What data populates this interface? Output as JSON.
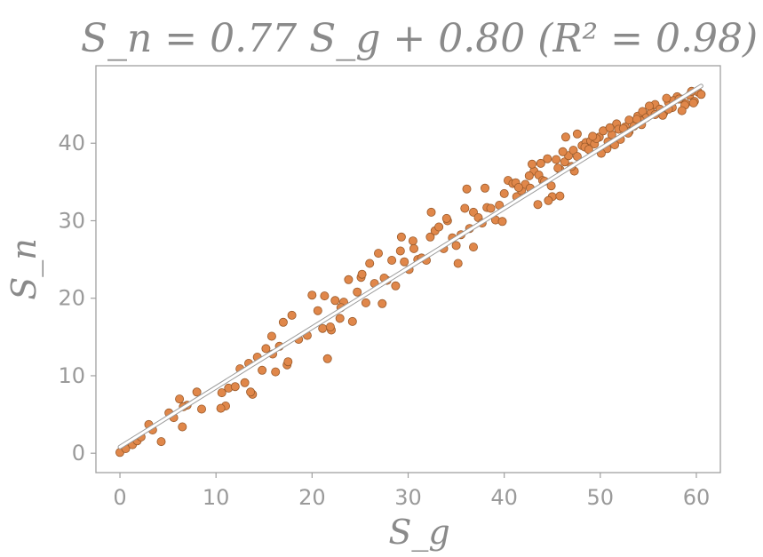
{
  "chart_data": {
    "type": "scatter",
    "title": "S_n = 0.77 S_g + 0.80   (R² = 0.98)",
    "xlabel": "S_g",
    "ylabel": "S_n",
    "xlim": [
      -2.5,
      62.5
    ],
    "ylim": [
      -2.5,
      50
    ],
    "xticks": [
      0,
      10,
      20,
      30,
      40,
      50,
      60
    ],
    "yticks": [
      0,
      10,
      20,
      30,
      40
    ],
    "grid": false,
    "legend": "none",
    "colors": {
      "points": "#e0874a",
      "point_edge": "#9a5a2a",
      "fit_line": "#ffffff",
      "fit_line_edge": "#9a9a9a",
      "text": "#8a8a8a",
      "frame": "#a0a0a0"
    },
    "fit": {
      "slope": 0.77,
      "intercept": 0.8,
      "r2": 0.98,
      "x_range": [
        0,
        60.5
      ]
    },
    "series": [
      {
        "x": [
          0.0,
          0.6,
          1.3,
          1.8,
          2.2,
          3.0,
          3.4,
          4.3,
          5.1,
          5.6,
          6.2,
          6.5,
          7.0,
          8.0,
          8.5,
          10.6,
          11.0,
          11.3,
          12.0,
          12.5,
          13.0,
          13.4,
          13.8,
          14.3,
          14.8,
          15.2,
          15.8,
          16.2,
          16.6,
          17.0,
          17.4,
          17.9,
          18.6,
          19.5,
          20.0,
          20.6,
          21.1,
          21.3,
          21.6,
          22.0,
          22.4,
          22.9,
          23.3,
          23.8,
          24.2,
          24.7,
          25.1,
          25.6,
          26.0,
          26.5,
          26.9,
          27.3,
          27.8,
          28.3,
          28.7,
          29.2,
          29.6,
          30.1,
          30.5,
          31.0,
          31.4,
          31.9,
          32.3,
          32.8,
          33.2,
          33.7,
          34.1,
          34.6,
          35.0,
          35.5,
          35.9,
          36.4,
          36.8,
          37.3,
          37.7,
          38.2,
          38.6,
          39.1,
          39.5,
          40.0,
          40.4,
          40.9,
          41.3,
          41.8,
          42.2,
          42.7,
          43.1,
          43.6,
          44.0,
          44.5,
          44.9,
          45.4,
          45.8,
          46.3,
          46.7,
          47.2,
          47.6,
          48.1,
          48.5,
          49.0,
          49.4,
          49.9,
          50.3,
          50.8,
          51.2,
          51.7,
          52.1,
          52.6,
          53.0,
          53.5,
          53.9,
          54.4,
          54.8,
          55.3,
          55.7,
          56.2,
          56.6,
          57.1,
          57.5,
          58.0,
          58.4,
          58.9,
          59.3,
          59.8,
          60.2,
          60.5,
          41.2,
          42.6,
          43.8,
          45.0,
          46.1,
          47.3,
          48.4,
          49.6,
          50.7,
          51.9,
          53.0,
          54.2,
          55.3,
          56.5,
          57.6,
          58.8,
          44.2,
          45.6,
          47.0,
          48.8,
          50.1,
          51.5,
          52.9,
          54.3,
          55.7,
          57.1,
          58.5,
          59.7,
          35.2,
          36.8,
          39.8,
          41.5,
          43.5,
          45.8,
          47.6,
          49.2,
          51.0,
          52.4,
          53.8,
          55.1,
          56.9,
          58.2,
          59.5,
          42.9,
          44.6,
          46.4,
          38.0,
          36.1,
          34.0,
          32.4,
          30.6,
          29.3,
          27.5,
          25.2,
          23.0,
          21.9,
          17.5,
          15.9,
          13.6,
          10.5,
          6.6
        ],
        "y": [
          0.1,
          0.6,
          1.1,
          1.6,
          2.1,
          3.7,
          3.0,
          1.5,
          5.2,
          4.6,
          7.0,
          3.4,
          6.2,
          7.9,
          5.7,
          7.8,
          6.1,
          8.4,
          8.6,
          10.9,
          9.1,
          11.6,
          7.6,
          12.4,
          10.7,
          13.5,
          15.1,
          10.5,
          13.8,
          16.9,
          11.4,
          17.8,
          14.7,
          15.2,
          20.4,
          18.4,
          16.1,
          20.3,
          12.2,
          15.9,
          19.7,
          17.4,
          19.5,
          22.4,
          17.0,
          20.8,
          22.7,
          19.4,
          24.5,
          21.9,
          25.8,
          19.3,
          22.3,
          24.9,
          21.6,
          26.1,
          24.7,
          23.7,
          27.4,
          25.0,
          25.2,
          24.9,
          27.9,
          28.7,
          29.2,
          26.4,
          30.0,
          27.8,
          26.8,
          28.2,
          31.6,
          29.0,
          31.1,
          30.4,
          29.7,
          31.7,
          31.6,
          30.1,
          32.0,
          33.5,
          35.2,
          34.8,
          33.1,
          33.9,
          34.7,
          34.2,
          36.4,
          35.9,
          35.2,
          38.0,
          34.5,
          37.9,
          36.6,
          37.6,
          38.4,
          39.1,
          38.3,
          39.7,
          40.1,
          40.3,
          39.9,
          40.8,
          41.6,
          40.2,
          41.1,
          42.5,
          40.5,
          42.1,
          43.0,
          42.2,
          43.5,
          44.1,
          43.3,
          44.7,
          45.0,
          44.4,
          43.9,
          45.3,
          44.6,
          46.0,
          45.7,
          45.1,
          46.2,
          45.4,
          46.6,
          46.3,
          34.9,
          35.8,
          37.4,
          33.1,
          38.9,
          36.4,
          39.5,
          40.6,
          39.3,
          41.8,
          41.5,
          42.9,
          44.0,
          43.6,
          45.5,
          44.9,
          35.1,
          36.8,
          37.0,
          39.2,
          38.7,
          39.8,
          41.3,
          42.4,
          43.7,
          44.4,
          44.2,
          45.2,
          24.5,
          26.6,
          29.9,
          34.3,
          32.1,
          33.2,
          41.2,
          40.9,
          42.0,
          41.9,
          43.1,
          44.8,
          45.8,
          45.7,
          46.7,
          37.3,
          32.6,
          40.8,
          34.2,
          34.1,
          30.3,
          31.1,
          26.4,
          27.9,
          22.6,
          23.1,
          18.8,
          16.3,
          11.8,
          12.8,
          7.9,
          5.8,
          6.0
        ]
      }
    ]
  }
}
